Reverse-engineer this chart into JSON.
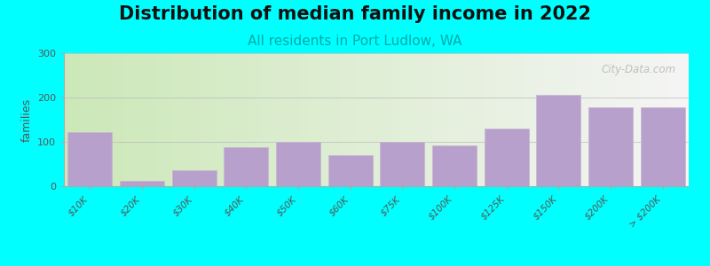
{
  "title": "Distribution of median family income in 2022",
  "subtitle": "All residents in Port Ludlow, WA",
  "ylabel": "families",
  "background_color": "#00FFFF",
  "bar_color": "#b8a0cc",
  "bar_edge_color": "#c8b4d4",
  "categories": [
    "$10K",
    "$20K",
    "$30K",
    "$40K",
    "$50K",
    "$60K",
    "$75K",
    "$100K",
    "$125K",
    "$150K",
    "$200K",
    "> $200K"
  ],
  "values": [
    122,
    12,
    37,
    88,
    100,
    70,
    100,
    92,
    130,
    207,
    178,
    178
  ],
  "ylim": [
    0,
    300
  ],
  "yticks": [
    0,
    100,
    200,
    300
  ],
  "title_fontsize": 15,
  "subtitle_fontsize": 11,
  "subtitle_color": "#00AAAA",
  "watermark": "City-Data.com",
  "grad_left": "#cce8b8",
  "grad_right": "#f5f5f5"
}
